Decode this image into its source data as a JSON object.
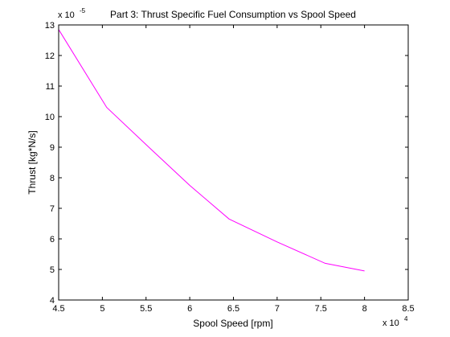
{
  "chart_data": {
    "type": "line",
    "title": "Part 3: Thrust Specific Fuel Consumption vs Spool Speed",
    "xlabel": "Spool Speed [rpm]",
    "ylabel": "Thrust [kg*N/s]",
    "x_multiplier": {
      "base": "x 10",
      "exponent": "4"
    },
    "y_multiplier": {
      "base": "x 10",
      "exponent": "-5"
    },
    "xlim": [
      45000,
      85000
    ],
    "ylim": [
      4e-05,
      0.00013
    ],
    "xticks": [
      45000,
      50000,
      55000,
      60000,
      65000,
      70000,
      75000,
      80000,
      85000
    ],
    "xtick_labels": [
      "4.5",
      "5",
      "5.5",
      "6",
      "6.5",
      "7",
      "7.5",
      "8",
      "8.5"
    ],
    "yticks": [
      4e-05,
      5e-05,
      6e-05,
      7e-05,
      8e-05,
      9e-05,
      0.0001,
      0.00011,
      0.00012,
      0.00013
    ],
    "ytick_labels": [
      "4",
      "5",
      "6",
      "7",
      "8",
      "9",
      "10",
      "11",
      "12",
      "13"
    ],
    "grid": false,
    "series": [
      {
        "color": "#ff00ff",
        "x": [
          45000,
          50500,
          55500,
          60000,
          64500,
          70000,
          75500,
          80000
        ],
        "y": [
          0.0001285,
          0.000103,
          8.95e-05,
          7.75e-05,
          6.65e-05,
          5.9e-05,
          5.2e-05,
          4.95e-05
        ]
      }
    ]
  }
}
